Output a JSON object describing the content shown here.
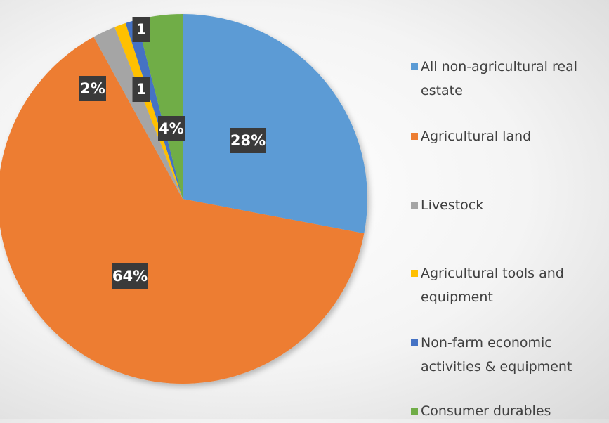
{
  "chart_data": {
    "type": "pie",
    "slices": [
      {
        "name": "All non-agricultural real estate",
        "value": 28,
        "label": "28%",
        "color": "#5b9bd5"
      },
      {
        "name": "Agricultural land",
        "value": 64,
        "label": "64%",
        "color": "#ed7d31"
      },
      {
        "name": "Livestock",
        "value": 2,
        "label": "2%",
        "color": "#a5a5a5"
      },
      {
        "name": "Agricultural tools and equipment",
        "value": 1,
        "label": "1",
        "color": "#ffc000"
      },
      {
        "name": "Non-farm economic activities & equipment",
        "value": 1,
        "label": "1",
        "color": "#4472c4"
      },
      {
        "name": "Consumer durables",
        "value": 4,
        "label": "4%",
        "color": "#70ad47"
      }
    ],
    "legend_position": "right"
  }
}
